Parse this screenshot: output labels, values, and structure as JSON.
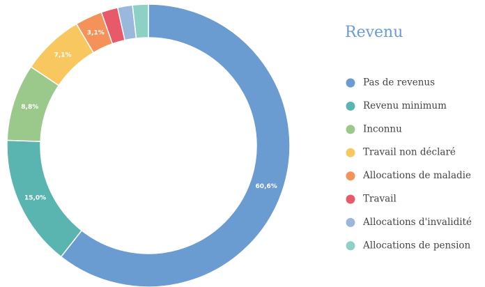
{
  "chart_data": {
    "type": "donut",
    "title": "Revenu",
    "categories": [
      "Pas de revenus",
      "Revenu minimum",
      "Inconnu",
      "Travail non déclaré",
      "Allocations de maladie",
      "Travail",
      "Allocations d'invalidité",
      "Allocations de pension"
    ],
    "values": [
      60.6,
      15.0,
      8.8,
      7.1,
      3.1,
      1.9,
      1.7,
      1.8
    ],
    "value_labels": [
      "60,6%",
      "15,0%",
      "8,8%",
      "7,1%",
      "3,1%",
      null,
      null,
      null
    ],
    "colors": [
      "#6a9bd1",
      "#5ab5b0",
      "#9ac98b",
      "#f9c75f",
      "#f4925a",
      "#e85a6a",
      "#9ab8dc",
      "#8dd0c6"
    ],
    "legend": "right"
  }
}
